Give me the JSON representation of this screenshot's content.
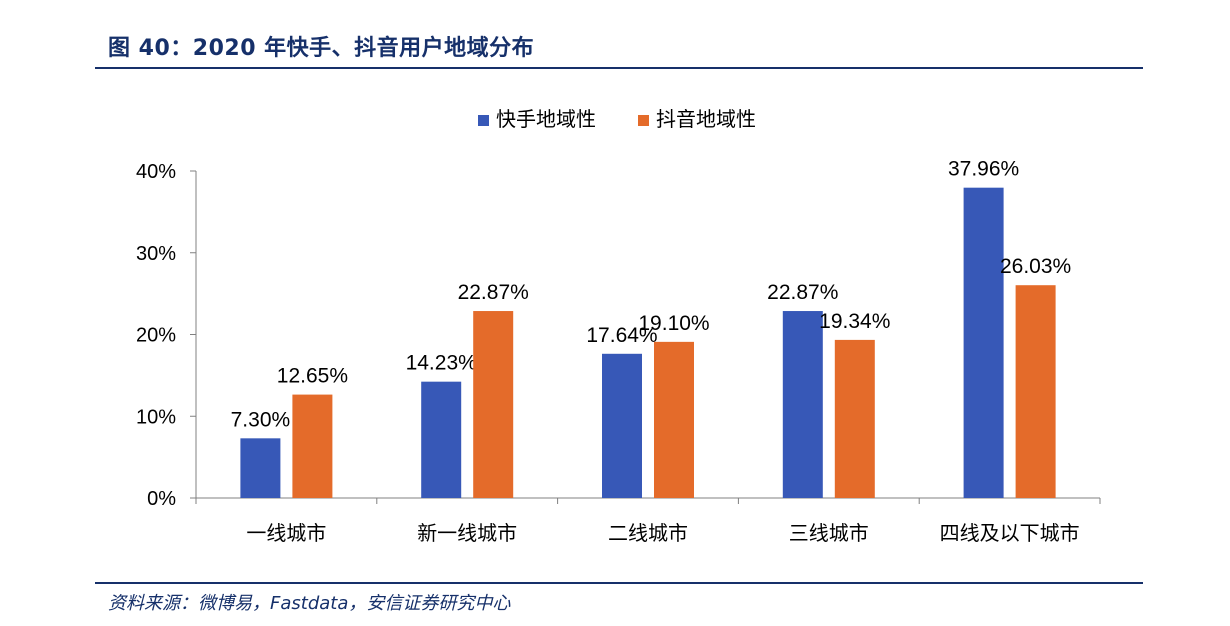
{
  "figure_title": "图 40：2020 年快手、抖音用户地域分布",
  "source": "资料来源：微博易，Fastdata，安信证券研究中心",
  "colors": {
    "series1": "#3758b7",
    "series2": "#e46b2a",
    "navy": "#16306a"
  },
  "chart_data": {
    "type": "bar",
    "categories": [
      "一线城市",
      "新一线城市",
      "二线城市",
      "三线城市",
      "四线及以下城市"
    ],
    "series": [
      {
        "name": "快手地域性",
        "values": [
          7.3,
          14.23,
          17.64,
          22.87,
          37.96
        ],
        "labels": [
          "7.30%",
          "14.23%",
          "17.64%",
          "22.87%",
          "37.96%"
        ]
      },
      {
        "name": "抖音地域性",
        "values": [
          12.65,
          22.87,
          19.1,
          19.34,
          26.03
        ],
        "labels": [
          "12.65%",
          "22.87%",
          "19.10%",
          "19.34%",
          "26.03%"
        ]
      }
    ],
    "yticks": [
      "0%",
      "10%",
      "20%",
      "30%",
      "40%"
    ],
    "ylim": [
      0,
      40
    ],
    "legend": "top-center",
    "grid": false
  }
}
